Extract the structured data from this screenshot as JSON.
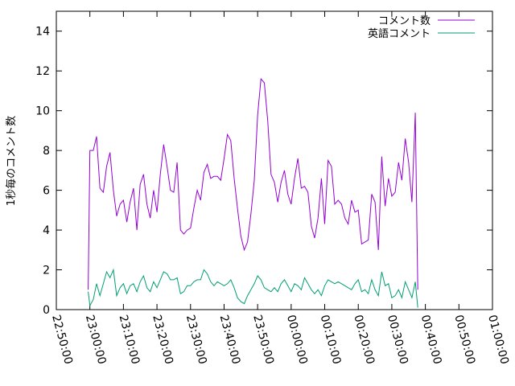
{
  "chart_data": {
    "type": "line",
    "ylabel": "1秒毎のコメント数",
    "xlabel": "",
    "ylim": [
      0,
      15
    ],
    "xlim": [
      "22:50:00",
      "01:00:00"
    ],
    "y_ticks": [
      "0",
      "2",
      "4",
      "6",
      "8",
      "10",
      "12",
      "14"
    ],
    "x_ticks": [
      "22:50:00",
      "23:00:00",
      "23:10:00",
      "23:20:00",
      "23:30:00",
      "23:40:00",
      "23:50:00",
      "00:00:00",
      "00:10:00",
      "00:20:00",
      "00:30:00",
      "00:40:00",
      "00:50:00",
      "01:00:00"
    ],
    "legend_position": "top-right",
    "grid": false,
    "series": [
      {
        "name": "コメント数",
        "color": "#9400d3",
        "points": [
          [
            "22:59:30",
            1.0
          ],
          [
            "23:00:00",
            8.0
          ],
          [
            "23:01:00",
            8.0
          ],
          [
            "23:02:00",
            8.7
          ],
          [
            "23:03:00",
            6.1
          ],
          [
            "23:04:00",
            5.9
          ],
          [
            "23:05:00",
            7.2
          ],
          [
            "23:06:00",
            7.9
          ],
          [
            "23:07:00",
            6.0
          ],
          [
            "23:08:00",
            4.7
          ],
          [
            "23:09:00",
            5.3
          ],
          [
            "23:10:00",
            5.5
          ],
          [
            "23:11:00",
            4.4
          ],
          [
            "23:12:00",
            5.4
          ],
          [
            "23:13:00",
            6.1
          ],
          [
            "23:14:00",
            4.0
          ],
          [
            "23:15:00",
            6.3
          ],
          [
            "23:16:00",
            6.8
          ],
          [
            "23:17:00",
            5.3
          ],
          [
            "23:18:00",
            4.6
          ],
          [
            "23:19:00",
            6.0
          ],
          [
            "23:20:00",
            4.9
          ],
          [
            "23:21:00",
            6.8
          ],
          [
            "23:22:00",
            8.3
          ],
          [
            "23:23:00",
            7.2
          ],
          [
            "23:24:00",
            6.0
          ],
          [
            "23:25:00",
            5.9
          ],
          [
            "23:26:00",
            7.4
          ],
          [
            "23:27:00",
            4.0
          ],
          [
            "23:28:00",
            3.8
          ],
          [
            "23:29:00",
            4.0
          ],
          [
            "23:30:00",
            4.1
          ],
          [
            "23:31:00",
            5.1
          ],
          [
            "23:32:00",
            6.0
          ],
          [
            "23:33:00",
            5.5
          ],
          [
            "23:34:00",
            6.9
          ],
          [
            "23:35:00",
            7.3
          ],
          [
            "23:36:00",
            6.6
          ],
          [
            "23:37:00",
            6.7
          ],
          [
            "23:38:00",
            6.7
          ],
          [
            "23:39:00",
            6.5
          ],
          [
            "23:40:00",
            7.6
          ],
          [
            "23:41:00",
            8.8
          ],
          [
            "23:42:00",
            8.5
          ],
          [
            "23:43:00",
            6.6
          ],
          [
            "23:44:00",
            5.1
          ],
          [
            "23:45:00",
            3.7
          ],
          [
            "23:46:00",
            3.0
          ],
          [
            "23:47:00",
            3.4
          ],
          [
            "23:48:00",
            4.8
          ],
          [
            "23:49:00",
            6.5
          ],
          [
            "23:50:00",
            9.8
          ],
          [
            "23:51:00",
            11.6
          ],
          [
            "23:52:00",
            11.4
          ],
          [
            "23:53:00",
            9.5
          ],
          [
            "23:54:00",
            6.8
          ],
          [
            "23:55:00",
            6.4
          ],
          [
            "23:56:00",
            5.4
          ],
          [
            "23:57:00",
            6.4
          ],
          [
            "23:58:00",
            7.0
          ],
          [
            "23:59:00",
            5.8
          ],
          [
            "00:00:00",
            5.3
          ],
          [
            "00:01:00",
            6.6
          ],
          [
            "00:02:00",
            7.6
          ],
          [
            "00:03:00",
            6.1
          ],
          [
            "00:04:00",
            6.2
          ],
          [
            "00:05:00",
            5.9
          ],
          [
            "00:06:00",
            4.2
          ],
          [
            "00:07:00",
            3.6
          ],
          [
            "00:08:00",
            4.6
          ],
          [
            "00:09:00",
            6.6
          ],
          [
            "00:10:00",
            4.3
          ],
          [
            "00:11:00",
            7.5
          ],
          [
            "00:12:00",
            7.2
          ],
          [
            "00:13:00",
            5.3
          ],
          [
            "00:14:00",
            5.5
          ],
          [
            "00:15:00",
            5.3
          ],
          [
            "00:16:00",
            4.6
          ],
          [
            "00:17:00",
            4.3
          ],
          [
            "00:18:00",
            5.5
          ],
          [
            "00:19:00",
            4.9
          ],
          [
            "00:20:00",
            5.0
          ],
          [
            "00:21:00",
            3.3
          ],
          [
            "00:22:00",
            3.4
          ],
          [
            "00:23:00",
            3.5
          ],
          [
            "00:24:00",
            5.8
          ],
          [
            "00:25:00",
            5.4
          ],
          [
            "00:26:00",
            3.0
          ],
          [
            "00:27:00",
            7.7
          ],
          [
            "00:28:00",
            5.2
          ],
          [
            "00:29:00",
            6.6
          ],
          [
            "00:30:00",
            5.7
          ],
          [
            "00:31:00",
            5.9
          ],
          [
            "00:32:00",
            7.4
          ],
          [
            "00:33:00",
            6.5
          ],
          [
            "00:34:00",
            8.6
          ],
          [
            "00:35:00",
            7.4
          ],
          [
            "00:36:00",
            5.4
          ],
          [
            "00:37:00",
            9.9
          ],
          [
            "00:37:45",
            1.0
          ]
        ]
      },
      {
        "name": "英語コメント",
        "color": "#009e73",
        "points": [
          [
            "22:59:30",
            0.9
          ],
          [
            "23:00:00",
            0.2
          ],
          [
            "23:01:00",
            0.5
          ],
          [
            "23:02:00",
            1.3
          ],
          [
            "23:03:00",
            0.7
          ],
          [
            "23:04:00",
            1.3
          ],
          [
            "23:05:00",
            1.9
          ],
          [
            "23:06:00",
            1.6
          ],
          [
            "23:07:00",
            2.0
          ],
          [
            "23:08:00",
            0.7
          ],
          [
            "23:09:00",
            1.1
          ],
          [
            "23:10:00",
            1.3
          ],
          [
            "23:11:00",
            0.8
          ],
          [
            "23:12:00",
            1.2
          ],
          [
            "23:13:00",
            1.3
          ],
          [
            "23:14:00",
            0.9
          ],
          [
            "23:15:00",
            1.4
          ],
          [
            "23:16:00",
            1.7
          ],
          [
            "23:17:00",
            1.1
          ],
          [
            "23:18:00",
            0.9
          ],
          [
            "23:19:00",
            1.4
          ],
          [
            "23:20:00",
            1.1
          ],
          [
            "23:21:00",
            1.5
          ],
          [
            "23:22:00",
            1.9
          ],
          [
            "23:23:00",
            1.8
          ],
          [
            "23:24:00",
            1.5
          ],
          [
            "23:25:00",
            1.5
          ],
          [
            "23:26:00",
            1.6
          ],
          [
            "23:27:00",
            0.8
          ],
          [
            "23:28:00",
            0.9
          ],
          [
            "23:29:00",
            1.2
          ],
          [
            "23:30:00",
            1.2
          ],
          [
            "23:31:00",
            1.4
          ],
          [
            "23:32:00",
            1.5
          ],
          [
            "23:33:00",
            1.5
          ],
          [
            "23:34:00",
            2.0
          ],
          [
            "23:35:00",
            1.8
          ],
          [
            "23:36:00",
            1.4
          ],
          [
            "23:37:00",
            1.2
          ],
          [
            "23:38:00",
            1.4
          ],
          [
            "23:39:00",
            1.3
          ],
          [
            "23:40:00",
            1.2
          ],
          [
            "23:41:00",
            1.3
          ],
          [
            "23:42:00",
            1.5
          ],
          [
            "23:43:00",
            1.1
          ],
          [
            "23:44:00",
            0.6
          ],
          [
            "23:45:00",
            0.4
          ],
          [
            "23:46:00",
            0.3
          ],
          [
            "23:47:00",
            0.7
          ],
          [
            "23:48:00",
            1.0
          ],
          [
            "23:49:00",
            1.3
          ],
          [
            "23:50:00",
            1.7
          ],
          [
            "23:51:00",
            1.5
          ],
          [
            "23:52:00",
            1.1
          ],
          [
            "23:53:00",
            1.0
          ],
          [
            "23:54:00",
            0.9
          ],
          [
            "23:55:00",
            1.1
          ],
          [
            "23:56:00",
            0.9
          ],
          [
            "23:57:00",
            1.3
          ],
          [
            "23:58:00",
            1.5
          ],
          [
            "23:59:00",
            1.2
          ],
          [
            "00:00:00",
            0.9
          ],
          [
            "00:01:00",
            1.3
          ],
          [
            "00:02:00",
            1.2
          ],
          [
            "00:03:00",
            1.0
          ],
          [
            "00:04:00",
            1.6
          ],
          [
            "00:05:00",
            1.3
          ],
          [
            "00:06:00",
            1.0
          ],
          [
            "00:07:00",
            0.8
          ],
          [
            "00:08:00",
            1.0
          ],
          [
            "00:09:00",
            0.7
          ],
          [
            "00:10:00",
            1.2
          ],
          [
            "00:11:00",
            1.5
          ],
          [
            "00:12:00",
            1.4
          ],
          [
            "00:13:00",
            1.3
          ],
          [
            "00:14:00",
            1.4
          ],
          [
            "00:15:00",
            1.3
          ],
          [
            "00:16:00",
            1.2
          ],
          [
            "00:17:00",
            1.1
          ],
          [
            "00:18:00",
            1.0
          ],
          [
            "00:19:00",
            1.3
          ],
          [
            "00:20:00",
            1.5
          ],
          [
            "00:21:00",
            0.9
          ],
          [
            "00:22:00",
            1.0
          ],
          [
            "00:23:00",
            0.8
          ],
          [
            "00:24:00",
            1.5
          ],
          [
            "00:25:00",
            1.0
          ],
          [
            "00:26:00",
            0.7
          ],
          [
            "00:27:00",
            1.9
          ],
          [
            "00:28:00",
            1.2
          ],
          [
            "00:29:00",
            1.3
          ],
          [
            "00:30:00",
            0.6
          ],
          [
            "00:31:00",
            0.7
          ],
          [
            "00:32:00",
            1.0
          ],
          [
            "00:33:00",
            0.6
          ],
          [
            "00:34:00",
            1.4
          ],
          [
            "00:35:00",
            1.0
          ],
          [
            "00:36:00",
            0.6
          ],
          [
            "00:37:00",
            1.4
          ],
          [
            "00:37:45",
            0.1
          ]
        ]
      }
    ]
  }
}
